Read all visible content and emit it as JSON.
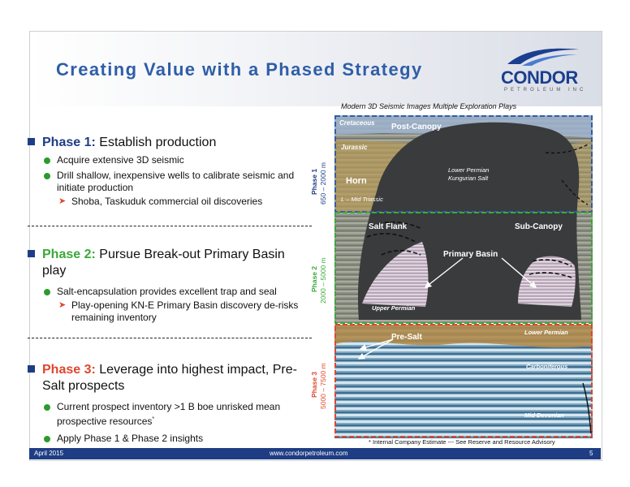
{
  "slide": {
    "title": "Creating Value with a Phased Strategy",
    "logo": {
      "name": "CONDOR",
      "tagline": "PETROLEUM INC"
    },
    "phases": [
      {
        "label": "Phase 1:",
        "heading": "Establish production",
        "bullets": [
          {
            "text": "Acquire extensive 3D seismic"
          },
          {
            "text": "Drill shallow, inexpensive wells to calibrate seismic and initiate production",
            "sub": "Shoba, Taskuduk commercial oil discoveries"
          }
        ]
      },
      {
        "label": "Phase 2:",
        "heading": "Pursue Break-out Primary Basin play",
        "bullets": [
          {
            "text": "Salt-encapsulation provides excellent trap and seal",
            "sub": "Play-opening KN-E Primary Basin discovery de-risks remaining inventory"
          }
        ]
      },
      {
        "label": "Phase 3:",
        "heading": "Leverage into highest impact, Pre-Salt prospects",
        "bullets": [
          {
            "text": "Current prospect inventory >1 B boe unrisked mean prospective resources",
            "sup": "*"
          },
          {
            "text": "Apply Phase 1 & Phase 2 insights"
          }
        ]
      }
    ],
    "figure": {
      "caption": "Modern 3D Seismic Images Multiple Exploration Plays",
      "zones": [
        {
          "name": "Phase 1",
          "range": "650 – 2000 m",
          "color": "#1e3d84"
        },
        {
          "name": "Phase 2",
          "range": "2000 – 5000 m",
          "color": "#3aa83a"
        },
        {
          "name": "Phase 3",
          "range": "5000 – 7500 m",
          "color": "#e0462c"
        }
      ],
      "labels": {
        "cretaceous": "Cretaceous",
        "post_canopy": "Post-Canopy",
        "jurassic": "Jurassic",
        "lower_permian_salt_1": "Lower Permian",
        "lower_permian_salt_2": "Kungurian Salt",
        "horn": "Horn",
        "mid_triassic": "L – Mid Triassic",
        "salt_flank": "Salt Flank",
        "sub_canopy": "Sub-Canopy",
        "primary_basin": "Primary Basin",
        "upper_permian": "Upper Permian",
        "pre_salt": "Pre-Salt",
        "lower_permian": "Lower Permian",
        "carboniferous": "Carboniferous",
        "mid_devonian": "Mid Devonian"
      }
    },
    "footnote": "* Internal Company Estimate --- See Reserve and Resource Advisory",
    "footer": {
      "date": "April 2015",
      "website": "www.condorpetroleum.com",
      "page": "5"
    },
    "colors": {
      "accent": "#2f5ea8",
      "navy": "#1e3d84",
      "green": "#3aa83a",
      "red": "#e0462c"
    }
  }
}
